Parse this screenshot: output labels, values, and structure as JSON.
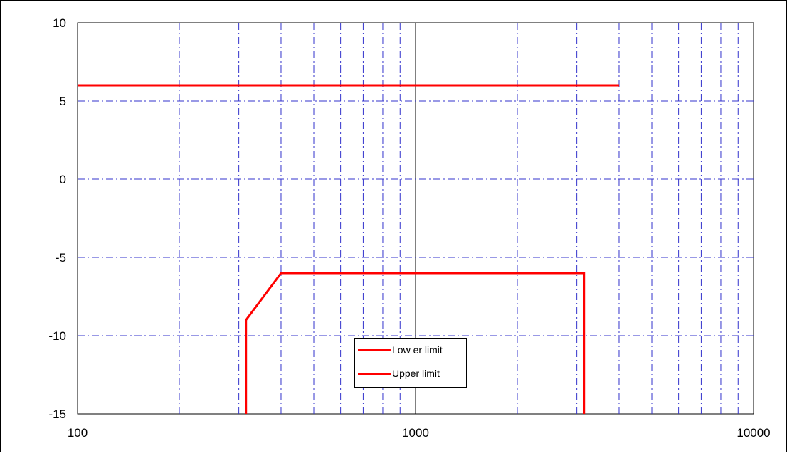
{
  "chart_data": {
    "type": "line",
    "xscale": "log",
    "xlim": [
      100,
      10000
    ],
    "ylim": [
      -15,
      10
    ],
    "x_ticks": [
      "100",
      "1000",
      "10000"
    ],
    "y_ticks": [
      "10",
      "5",
      "0",
      "-5",
      "-10",
      "-15"
    ],
    "grid": true,
    "legend_position": "bottom-center",
    "series": [
      {
        "name": "Low er limit",
        "color": "#ff0000",
        "x": [
          315,
          315,
          400,
          3150,
          3150
        ],
        "y": [
          -15,
          -9,
          -6,
          -6,
          -15
        ]
      },
      {
        "name": "Upper limit",
        "color": "#ff0000",
        "x": [
          100,
          4000
        ],
        "y": [
          6,
          6
        ]
      }
    ]
  },
  "colors": {
    "grid_dashdot": "#3333cc",
    "axis_line": "#000000",
    "plot_background": "#ffffff"
  }
}
